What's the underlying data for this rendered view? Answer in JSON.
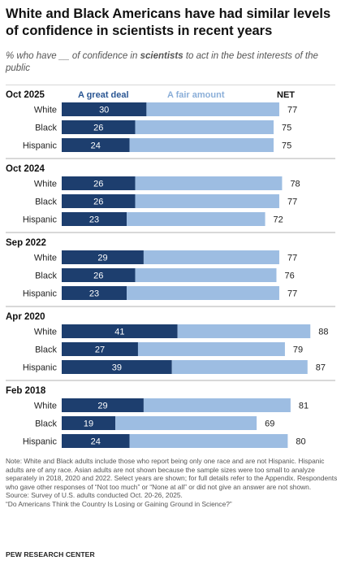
{
  "title": "White and Black Americans have had similar levels of confidence in scientists in recent years",
  "subtitle": {
    "before": "% who have __ of confidence in ",
    "emphasis": "scientists",
    "after": " to act in the best interests of the public"
  },
  "notes": {
    "note": "Note: White and Black adults include those who report being only one race and are not Hispanic. Hispanic adults are of any race. Asian adults are not shown because the sample sizes were too small to analyze separately in 2018, 2020 and 2022. Select years are shown; for full details refer to the Appendix. Respondents who gave other responses of “Not too much” or “None at all” or did not give an answer are not shown.",
    "source": "Source: Survey of U.S. adults conducted Oct. 20-26, 2025.",
    "report": "“Do Americans Think the Country Is Losing or Gaining Ground in Science?”"
  },
  "credit": "PEW RESEARCH CENTER",
  "colors": {
    "great_deal": "#1d3e6e",
    "fair_amount": "#9dbde2",
    "rule": "#999999",
    "text": "#222222",
    "legend_great_deal": "#2a5693",
    "legend_fair_amount": "#8aaed8"
  },
  "chart_data": {
    "type": "bar",
    "orientation": "horizontal",
    "stacked": true,
    "legend": {
      "great_deal": "A great deal",
      "fair_amount": "A fair amount",
      "net": "NET"
    },
    "xlim": [
      0,
      100
    ],
    "groups": [
      {
        "label": "Oct 2025",
        "rows": [
          {
            "category": "White",
            "great_deal": 30,
            "fair_amount": 47,
            "net": 77
          },
          {
            "category": "Black",
            "great_deal": 26,
            "fair_amount": 49,
            "net": 75
          },
          {
            "category": "Hispanic",
            "great_deal": 24,
            "fair_amount": 51,
            "net": 75
          }
        ]
      },
      {
        "label": "Oct 2024",
        "rows": [
          {
            "category": "White",
            "great_deal": 26,
            "fair_amount": 52,
            "net": 78
          },
          {
            "category": "Black",
            "great_deal": 26,
            "fair_amount": 51,
            "net": 77
          },
          {
            "category": "Hispanic",
            "great_deal": 23,
            "fair_amount": 49,
            "net": 72
          }
        ]
      },
      {
        "label": "Sep 2022",
        "rows": [
          {
            "category": "White",
            "great_deal": 29,
            "fair_amount": 48,
            "net": 77
          },
          {
            "category": "Black",
            "great_deal": 26,
            "fair_amount": 50,
            "net": 76
          },
          {
            "category": "Hispanic",
            "great_deal": 23,
            "fair_amount": 54,
            "net": 77
          }
        ]
      },
      {
        "label": "Apr 2020",
        "rows": [
          {
            "category": "White",
            "great_deal": 41,
            "fair_amount": 47,
            "net": 88
          },
          {
            "category": "Black",
            "great_deal": 27,
            "fair_amount": 52,
            "net": 79
          },
          {
            "category": "Hispanic",
            "great_deal": 39,
            "fair_amount": 48,
            "net": 87
          }
        ]
      },
      {
        "label": "Feb 2018",
        "rows": [
          {
            "category": "White",
            "great_deal": 29,
            "fair_amount": 52,
            "net": 81
          },
          {
            "category": "Black",
            "great_deal": 19,
            "fair_amount": 50,
            "net": 69
          },
          {
            "category": "Hispanic",
            "great_deal": 24,
            "fair_amount": 56,
            "net": 80
          }
        ]
      }
    ]
  }
}
